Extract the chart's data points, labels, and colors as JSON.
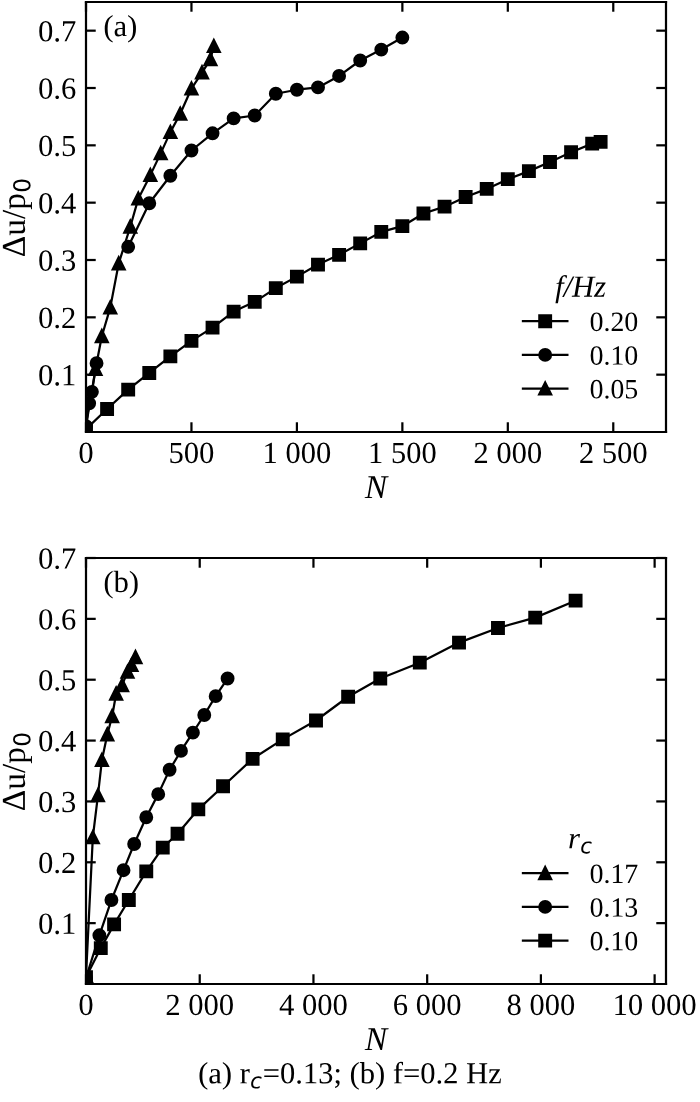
{
  "chart_data": [
    {
      "type": "line",
      "xlabel": "N",
      "ylabel": "Δu/p$_{0}$",
      "legend_title": "f/Hz",
      "legend": "bottom right",
      "grid": false,
      "line_style": "solid",
      "xlim": [
        0,
        2750
      ],
      "ylim": [
        0,
        0.75
      ],
      "xticks": [
        0,
        500,
        {
          "value": 1000,
          "label": "1 000"
        },
        {
          "value": 1500,
          "label": "1 500"
        },
        {
          "value": 2000,
          "label": "2 000"
        },
        {
          "value": 2500,
          "label": "2 500"
        }
      ],
      "yticks": [
        0.1,
        0.2,
        0.3,
        0.4,
        0.5,
        0.6,
        0.7
      ],
      "annotations": [
        "(a)"
      ],
      "series": [
        {
          "name": "0.20",
          "color": "#000000",
          "marker": "square",
          "x": [
            0,
            100,
            200,
            300,
            400,
            500,
            600,
            700,
            800,
            900,
            1000,
            1100,
            1200,
            1300,
            1400,
            1500,
            1600,
            1700,
            1800,
            1900,
            2000,
            2100,
            2200,
            2300,
            2400,
            2440
          ],
          "values": [
            0.005,
            0.04,
            0.074,
            0.103,
            0.132,
            0.159,
            0.182,
            0.21,
            0.227,
            0.251,
            0.271,
            0.292,
            0.309,
            0.329,
            0.349,
            0.359,
            0.381,
            0.393,
            0.41,
            0.424,
            0.441,
            0.455,
            0.471,
            0.488,
            0.503,
            0.506
          ]
        },
        {
          "name": "0.10",
          "color": "#000000",
          "marker": "circle",
          "x": [
            0,
            15,
            28,
            50,
            65,
            105,
            200,
            300,
            400,
            500,
            600,
            700,
            800,
            900,
            1000,
            1100,
            1200,
            1300,
            1400,
            1500
          ],
          "values": [
            0.01,
            0.05,
            0.07,
            0.12,
            null,
            null,
            0.323,
            0.399,
            0.447,
            0.491,
            0.521,
            0.547,
            0.552,
            0.59,
            0.597,
            0.601,
            0.621,
            0.648,
            0.667,
            0.688
          ]
        },
        {
          "name": "0.05",
          "color": "#000000",
          "marker": "triangle",
          "x": [
            0,
            45,
            75,
            115,
            155,
            210,
            248,
            305,
            354,
            400,
            447,
            500,
            550,
            590,
            606
          ],
          "values": [
            0.01,
            0.11,
            0.167,
            0.217,
            0.294,
            0.358,
            0.407,
            0.448,
            0.486,
            0.523,
            0.555,
            0.599,
            0.627,
            0.65,
            0.673
          ]
        }
      ]
    },
    {
      "type": "line",
      "xlabel": "N",
      "ylabel": "Δu/p$_{0}$",
      "legend_title": "r$_{c}$",
      "legend": "bottom right",
      "grid": false,
      "line_style": "solid",
      "xlim": [
        0,
        10200
      ],
      "ylim": [
        0,
        0.7
      ],
      "xticks": [
        0,
        {
          "value": 2000,
          "label": "2 000"
        },
        {
          "value": 4000,
          "label": "4 000"
        },
        {
          "value": 6000,
          "label": "6 000"
        },
        {
          "value": 8000,
          "label": "8 000"
        },
        {
          "value": 10000,
          "label": "10 000"
        }
      ],
      "yticks": [
        0.1,
        0.2,
        0.3,
        0.4,
        0.5,
        0.6,
        0.7
      ],
      "annotations": [
        "(b)",
        "(a) r$_{c}$=0.13; (b) f=0.2 Hz"
      ],
      "series": [
        {
          "name": "0.17",
          "color": "#000000",
          "marker": "triangle",
          "x": [
            0,
            120,
            210,
            280,
            375,
            460,
            530,
            635,
            730,
            800,
            870
          ],
          "values": [
            0.013,
            0.241,
            0.31,
            0.368,
            0.41,
            0.44,
            0.477,
            0.491,
            0.513,
            0.524,
            0.537
          ]
        },
        {
          "name": "0.13",
          "color": "#000000",
          "marker": "circle",
          "x": [
            0,
            235,
            447,
            660,
            847,
            1060,
            1270,
            1470,
            1670,
            1880,
            2080,
            2280,
            2490
          ],
          "values": [
            0.01,
            0.08,
            0.138,
            0.187,
            0.23,
            0.274,
            0.312,
            0.352,
            0.383,
            0.413,
            0.442,
            0.473,
            0.502
          ]
        },
        {
          "name": "0.10",
          "color": "#000000",
          "marker": "square",
          "x": [
            0,
            260,
            494,
            753,
            1060,
            1350,
            1610,
            1975,
            2410,
            2930,
            3460,
            4045,
            4610,
            5175,
            5870,
            6560,
            7245,
            7900,
            8610
          ],
          "values": [
            0.011,
            0.059,
            0.098,
            0.138,
            0.185,
            0.224,
            0.247,
            0.287,
            0.325,
            0.37,
            0.402,
            0.433,
            0.472,
            0.502,
            0.528,
            0.561,
            0.585,
            0.602,
            0.63
          ]
        }
      ]
    }
  ]
}
